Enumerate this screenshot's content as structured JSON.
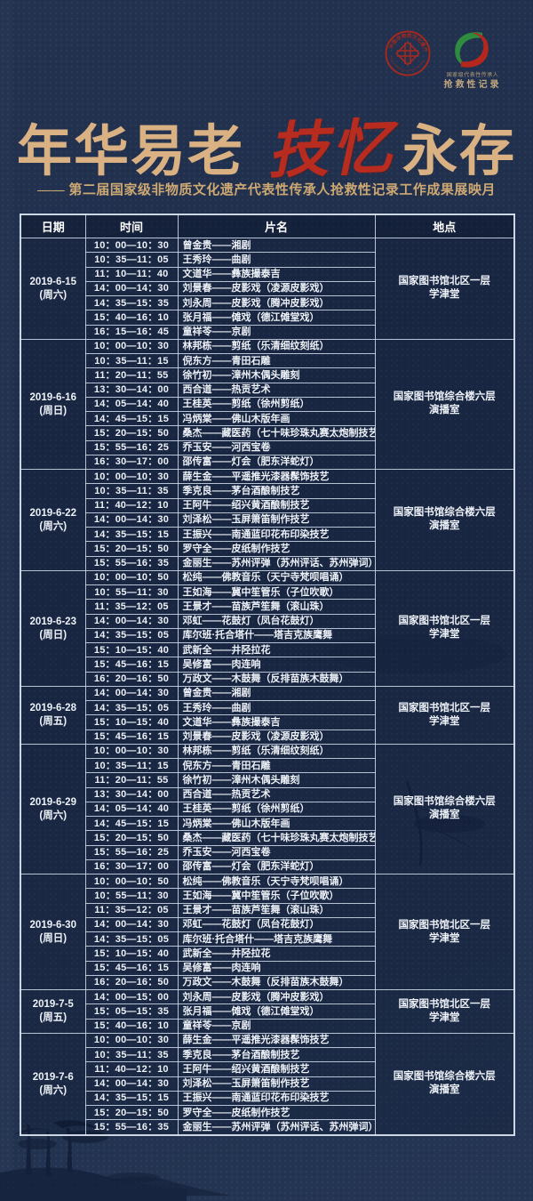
{
  "colors": {
    "background": "#22324f",
    "accent_gold": "#d9b183",
    "accent_red": "#b82c1f",
    "table_line": "#d2ddec",
    "cell_text": "#eef2f8"
  },
  "logos": {
    "left_seal": {
      "ring_text_cn": "中国非物质文化遗产",
      "ring_text_en": "CHINA INTANGIBLE CULTURAL HERITAGE"
    },
    "right_swirl": {
      "caption_line1": "国家级代表性传承人",
      "caption_line2": "抢救性记录"
    }
  },
  "title": {
    "part1": "年华易老",
    "part2": "技忆",
    "part3": "永存"
  },
  "subtitle": "—— 第二届国家级非物质文化遗产代表性传承人抢救性记录工作成果展映月",
  "table": {
    "columns": [
      "日期",
      "时间",
      "片名",
      "地点"
    ],
    "sections": [
      {
        "date": "2019-6-15",
        "weekday": "(周六)",
        "location": [
          "国家图书馆北区一层",
          "学津堂"
        ],
        "rows": [
          [
            "10：00—10：30",
            "曾金贵——湘剧"
          ],
          [
            "10：35—11：05",
            "王秀玲——曲剧"
          ],
          [
            "11：10—11：40",
            "文道华——彝族撮泰吉"
          ],
          [
            "14：00—14：30",
            "刘景春——皮影戏（凌源皮影戏）"
          ],
          [
            "14：35—15：35",
            "刘永周——皮影戏（腾冲皮影戏）"
          ],
          [
            "15：40—16：10",
            "张月福——傩戏（德江傩堂戏）"
          ],
          [
            "16：15—16：45",
            "童祥苓——京剧"
          ]
        ]
      },
      {
        "date": "2019-6-16",
        "weekday": "(周日)",
        "location": [
          "国家图书馆综合楼六层",
          "演播室"
        ],
        "rows": [
          [
            "10：00—10：30",
            "林邦栋——剪纸（乐清细纹刻纸）"
          ],
          [
            "10：35—11：15",
            "倪东方——青田石雕"
          ],
          [
            "11：20—11：55",
            "徐竹初——漳州木偶头雕刻"
          ],
          [
            "13：30—14：00",
            "西合道——热贡艺术"
          ],
          [
            "14：05—14：40",
            "王桂英——剪纸（徐州剪纸）"
          ],
          [
            "14：45—15：15",
            "冯炳棠——佛山木版年画"
          ],
          [
            "15：20—15：50",
            "桑杰——藏医药（七十味珍珠丸赛太炮制技艺）"
          ],
          [
            "15：55—16：25",
            "乔玉安——河西宝卷"
          ],
          [
            "16：30—17：00",
            "邵传富——灯会（肥东洋蛇灯）"
          ]
        ]
      },
      {
        "date": "2019-6-22",
        "weekday": "(周六)",
        "location": [
          "国家图书馆综合楼六层",
          "演播室"
        ],
        "rows": [
          [
            "10：00—10：30",
            "薛生金——平遥推光漆器髹饰技艺"
          ],
          [
            "10：35—11：35",
            "季克良——茅台酒酿制技艺"
          ],
          [
            "11：40—12：10",
            "王阿牛——绍兴黄酒酿制技艺"
          ],
          [
            "14：00—14：30",
            "刘泽松——玉屏箫笛制作技艺"
          ],
          [
            "14：35—15：15",
            "王振兴——南通蓝印花布印染技艺"
          ],
          [
            "15：20—15：50",
            "罗守全——皮纸制作技艺"
          ],
          [
            "15：55—16：35",
            "金丽生——苏州评弹（苏州评话、苏州弹词）"
          ]
        ]
      },
      {
        "date": "2019-6-23",
        "weekday": "(周日)",
        "location": [
          "国家图书馆北区一层",
          "学津堂"
        ],
        "rows": [
          [
            "10：00—10：50",
            "松纯——佛教音乐（天宁寺梵呗唱诵）"
          ],
          [
            "10：55—11：30",
            "王如海——冀中笙管乐（子位吹歌）"
          ],
          [
            "11：35—12：05",
            "王景才——苗族芦笙舞（滚山珠）"
          ],
          [
            "14：00—14：30",
            "邓虹——花鼓灯（凤台花鼓灯）"
          ],
          [
            "14：35—15：05",
            "库尔班·托合塔什——塔吉克族鹰舞"
          ],
          [
            "15：10—15：40",
            "武新全——井陉拉花"
          ],
          [
            "15：45—16：15",
            "吴修富——肉连响"
          ],
          [
            "16：20—16：50",
            "万政文——木鼓舞（反排苗族木鼓舞）"
          ]
        ]
      },
      {
        "date": "2019-6-28",
        "weekday": "(周五)",
        "location": [
          "国家图书馆北区一层",
          "学津堂"
        ],
        "rows": [
          [
            "14：00—14：30",
            "曾金贵——湘剧"
          ],
          [
            "14：35—15：05",
            "王秀玲——曲剧"
          ],
          [
            "15：10—15：40",
            "文道华——彝族撮泰吉"
          ],
          [
            "15：45—16：15",
            "刘景春——皮影戏（凌源皮影戏）"
          ]
        ]
      },
      {
        "date": "2019-6-29",
        "weekday": "(周六)",
        "location": [
          "国家图书馆综合楼六层",
          "演播室"
        ],
        "rows": [
          [
            "10：00—10：30",
            "林邦栋——剪纸（乐清细纹刻纸）"
          ],
          [
            "10：35—11：15",
            "倪东方——青田石雕"
          ],
          [
            "11：20—11：55",
            "徐竹初——漳州木偶头雕刻"
          ],
          [
            "13：30—14：00",
            "西合道——热贡艺术"
          ],
          [
            "14：05—14：40",
            "王桂英——剪纸（徐州剪纸）"
          ],
          [
            "14：45—15：15",
            "冯炳棠——佛山木版年画"
          ],
          [
            "15：20—15：50",
            "桑杰——藏医药（七十味珍珠丸赛太炮制技艺）"
          ],
          [
            "15：55—16：25",
            "乔玉安——河西宝卷"
          ],
          [
            "16：30—17：00",
            "邵传富——灯会（肥东洋蛇灯）"
          ]
        ]
      },
      {
        "date": "2019-6-30",
        "weekday": "(周日)",
        "location": [
          "国家图书馆北区一层",
          "学津堂"
        ],
        "rows": [
          [
            "10：00—10：50",
            "松纯——佛教音乐（天宁寺梵呗唱诵）"
          ],
          [
            "10：55—11：30",
            "王如海——冀中笙管乐（子位吹歌）"
          ],
          [
            "11：35—12：05",
            "王景才——苗族芦笙舞（滚山珠）"
          ],
          [
            "14：00—14：30",
            "邓虹——花鼓灯（凤台花鼓灯）"
          ],
          [
            "14：35—15：05",
            "库尔班·托合塔什——塔吉克族鹰舞"
          ],
          [
            "15：10—15：40",
            "武新全——井陉拉花"
          ],
          [
            "15：45—16：15",
            "吴修富——肉连响"
          ],
          [
            "16：20—16：50",
            "万政文——木鼓舞（反排苗族木鼓舞）"
          ]
        ]
      },
      {
        "date": "2019-7-5",
        "weekday": "(周五)",
        "location": [
          "国家图书馆北区一层",
          "学津堂"
        ],
        "rows": [
          [
            "14：00—15：00",
            "刘永周——皮影戏（腾冲皮影戏）"
          ],
          [
            "15：05—15：35",
            "张月福——傩戏（德江傩堂戏）"
          ],
          [
            "15：40—16：10",
            "童祥苓——京剧"
          ]
        ]
      },
      {
        "date": "2019-7-6",
        "weekday": "(周六)",
        "location": [
          "国家图书馆综合楼六层",
          "演播室"
        ],
        "rows": [
          [
            "10：00—10：30",
            "薛生金——平遥推光漆器髹饰技艺"
          ],
          [
            "10：35—11：35",
            "季克良——茅台酒酿制技艺"
          ],
          [
            "11：40—12：10",
            "王阿牛——绍兴黄酒酿制技艺"
          ],
          [
            "14：00—14：30",
            "刘泽松——玉屏箫笛制作技艺"
          ],
          [
            "14：35—15：15",
            "王振兴——南通蓝印花布印染技艺"
          ],
          [
            "15：20—15：50",
            "罗守全——皮纸制作技艺"
          ],
          [
            "15：55—16：35",
            "金丽生——苏州评弹（苏州评话、苏州弹词）"
          ]
        ]
      }
    ]
  }
}
